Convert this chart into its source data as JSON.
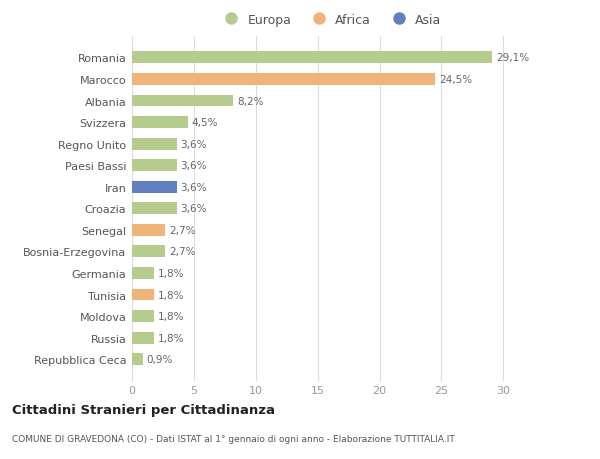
{
  "countries": [
    "Repubblica Ceca",
    "Russia",
    "Moldova",
    "Tunisia",
    "Germania",
    "Bosnia-Erzegovina",
    "Senegal",
    "Croazia",
    "Iran",
    "Paesi Bassi",
    "Regno Unito",
    "Svizzera",
    "Albania",
    "Marocco",
    "Romania"
  ],
  "values": [
    0.9,
    1.8,
    1.8,
    1.8,
    1.8,
    2.7,
    2.7,
    3.6,
    3.6,
    3.6,
    3.6,
    4.5,
    8.2,
    24.5,
    29.1
  ],
  "labels": [
    "0,9%",
    "1,8%",
    "1,8%",
    "1,8%",
    "1,8%",
    "2,7%",
    "2,7%",
    "3,6%",
    "3,6%",
    "3,6%",
    "3,6%",
    "4,5%",
    "8,2%",
    "24,5%",
    "29,1%"
  ],
  "continent": [
    "Europa",
    "Europa",
    "Europa",
    "Africa",
    "Europa",
    "Europa",
    "Africa",
    "Europa",
    "Asia",
    "Europa",
    "Europa",
    "Europa",
    "Europa",
    "Africa",
    "Europa"
  ],
  "colors": {
    "Europa": "#b5cc8e",
    "Africa": "#f0b47a",
    "Asia": "#6080c0"
  },
  "xlim": [
    0,
    32
  ],
  "xticks": [
    0,
    5,
    10,
    15,
    20,
    25,
    30
  ],
  "title": "Cittadini Stranieri per Cittadinanza",
  "subtitle": "COMUNE DI GRAVEDONA (CO) - Dati ISTAT al 1° gennaio di ogni anno - Elaborazione TUTTITALIA.IT",
  "background_color": "#ffffff",
  "grid_color": "#dddddd",
  "bar_height": 0.55,
  "label_fontsize": 7.5,
  "ytick_fontsize": 8,
  "xtick_fontsize": 8
}
